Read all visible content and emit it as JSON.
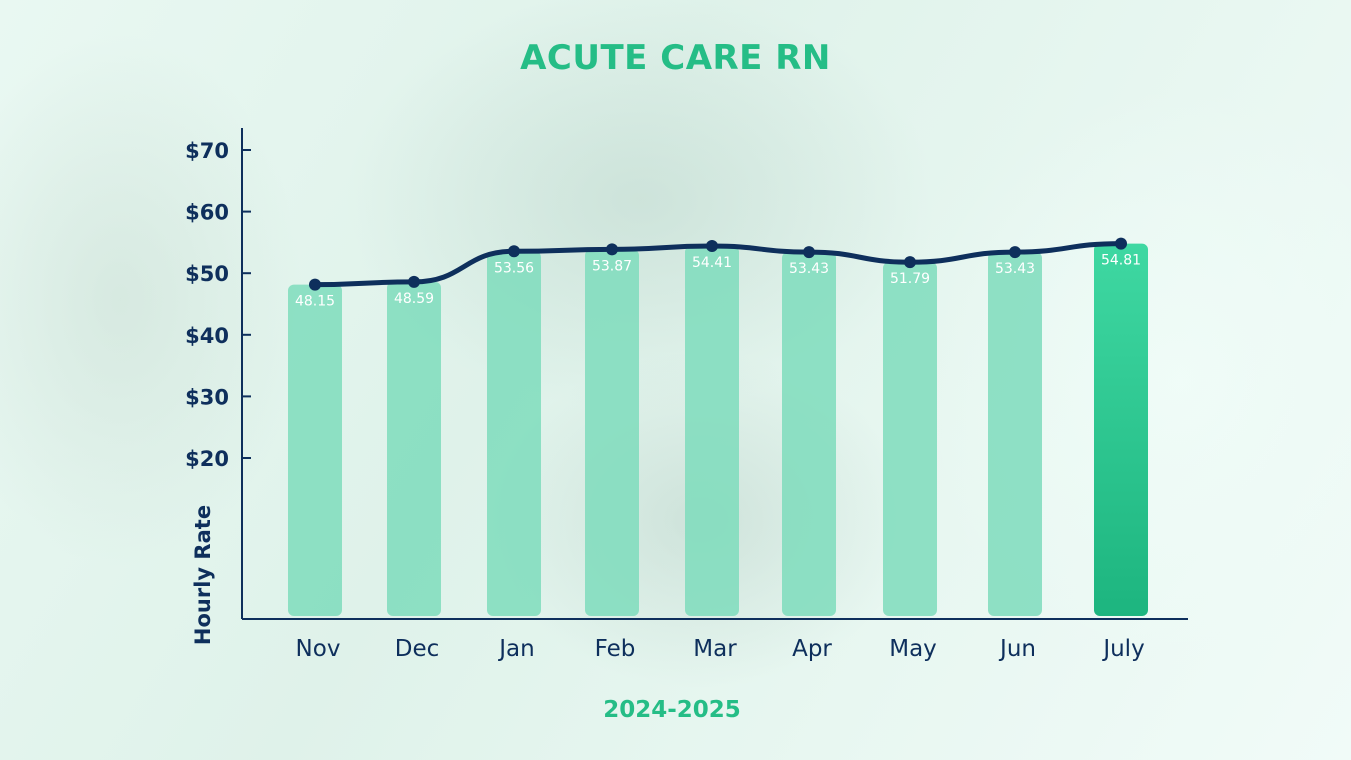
{
  "chart_data": {
    "type": "bar",
    "title": "ACUTE CARE RN",
    "xlabel": "2024-2025",
    "ylabel": "Hourly Rate",
    "categories": [
      "Nov",
      "Dec",
      "Jan",
      "Feb",
      "Mar",
      "Apr",
      "May",
      "Jun",
      "July"
    ],
    "values": [
      48.15,
      48.59,
      53.56,
      53.87,
      54.41,
      53.43,
      51.79,
      53.43,
      54.81
    ],
    "value_labels": [
      "48.15",
      "48.59",
      "53.56",
      "53.87",
      "54.41",
      "53.43",
      "51.79",
      "53.43",
      "54.81"
    ],
    "line_overlay": true,
    "y_ticks": [
      20,
      30,
      40,
      50,
      60,
      70
    ],
    "y_tick_labels": [
      "$20",
      "$30",
      "$40",
      "$50",
      "$60",
      "$70"
    ],
    "ylim": [
      0,
      73
    ],
    "grid": false,
    "legend": "none",
    "colors": {
      "bar": "#7edcbc",
      "highlight_bar": "#2cc98f",
      "line": "#0e2f5c",
      "title": "#25bd86",
      "axis_text": "#0e2f5c"
    }
  }
}
